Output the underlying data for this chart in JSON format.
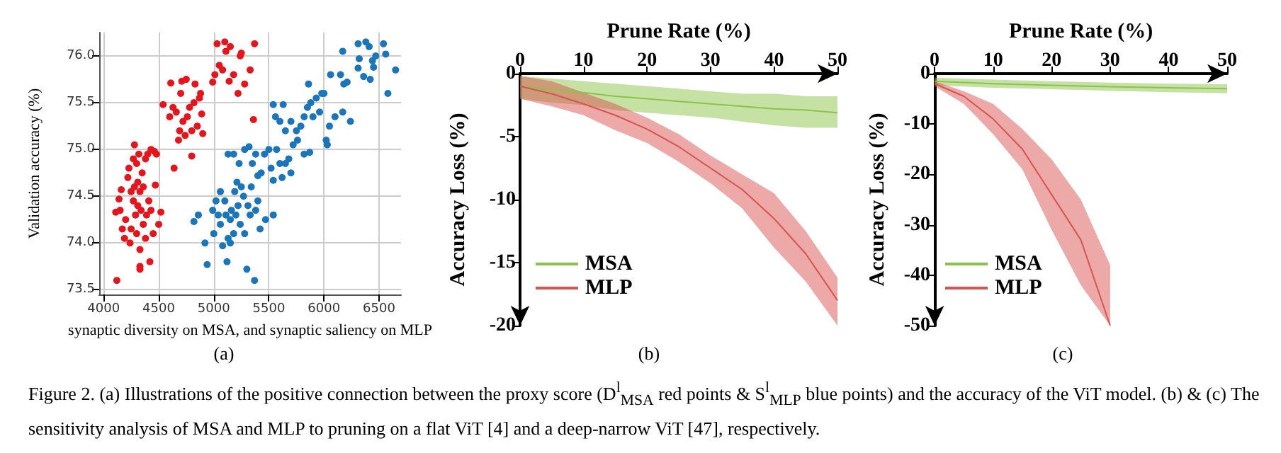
{
  "chart_data": [
    {
      "type": "scatter",
      "xlabel": "synaptic diversity on MSA, and synaptic saliency on MLP",
      "ylabel": "Validation accuracy (%)",
      "xlim": [
        3960,
        6700
      ],
      "xticks": [
        4000,
        4500,
        5000,
        5500,
        6000,
        6500
      ],
      "ylim": [
        73.45,
        76.25
      ],
      "yticks": [
        {
          "value": 73.5,
          "label": "73.5"
        },
        {
          "value": 74,
          "label": "74.0"
        },
        {
          "value": 74.5,
          "label": "74.5"
        },
        {
          "value": 75,
          "label": "75.0"
        },
        {
          "value": 75.5,
          "label": "75.5"
        },
        {
          "value": 76,
          "label": "76.0"
        }
      ],
      "grid": true,
      "marker": "circle",
      "annotations": [
        "(a)"
      ],
      "series": [
        {
          "color": "#e8141c",
          "x": [
            4120,
            4330,
            4330,
            4420,
            4240,
            4330,
            4380,
            4450,
            4500,
            4170,
            4200,
            4150,
            4110,
            4140,
            4160,
            4220,
            4250,
            4270,
            4290,
            4310,
            4340,
            4360,
            4390,
            4410,
            4430,
            4470,
            4520,
            4270,
            4280,
            4300,
            4320,
            4350,
            4380,
            4400,
            4430,
            4460,
            4480,
            4310,
            4330,
            4250,
            4300,
            4190,
            4360,
            4230,
            4280,
            4540,
            4610,
            4640,
            4600,
            4630,
            4660,
            4690,
            4700,
            4720,
            4710,
            4750,
            4760,
            4780,
            4800,
            4800,
            4820,
            4830,
            4850,
            4870,
            4890,
            4900,
            4880,
            4680,
            4740,
            4990,
            5010,
            5030,
            5050,
            5080,
            5100,
            5110,
            5150,
            5140,
            5180,
            5220,
            5240,
            5250,
            5280,
            5330,
            5360,
            5370
          ],
          "values": [
            73.6,
            73.75,
            73.72,
            73.8,
            74.0,
            73.93,
            74.05,
            74.1,
            74.2,
            74.15,
            74.25,
            74.35,
            74.33,
            74.47,
            74.57,
            74.7,
            74.55,
            74.45,
            74.3,
            74.4,
            74.35,
            74.2,
            74.3,
            74.45,
            74.35,
            74.62,
            74.33,
            74.9,
            75.05,
            74.85,
            74.95,
            74.75,
            74.9,
            74.95,
            75.0,
            74.98,
            74.95,
            74.65,
            74.55,
            74.15,
            74.1,
            74.05,
            74.6,
            74.8,
            74.6,
            75.48,
            75.71,
            74.8,
            75.35,
            75.45,
            75.4,
            75.2,
            75.6,
            75.3,
            75.73,
            75.75,
            75.35,
            75.45,
            74.93,
            75.2,
            75.5,
            75.7,
            75.25,
            75.55,
            75.38,
            75.17,
            75.6,
            75.1,
            75.15,
            75.72,
            75.8,
            76.13,
            75.9,
            75.85,
            76.15,
            76.05,
            76.1,
            75.73,
            75.8,
            75.6,
            76.0,
            76.03,
            75.7,
            75.85,
            75.32,
            76.13
          ]
        },
        {
          "color": "#1a75bb",
          "x": [
            4820,
            4860,
            4920,
            4940,
            5000,
            4990,
            5020,
            5040,
            5060,
            5080,
            5100,
            5120,
            5130,
            5150,
            5160,
            5180,
            5190,
            5200,
            5220,
            5240,
            5250,
            5270,
            5280,
            5300,
            5310,
            5330,
            5340,
            5370,
            5380,
            5400,
            5420,
            5470,
            5540,
            5060,
            5150,
            5210,
            5110,
            5130,
            5180,
            5230,
            5280,
            5320,
            5350,
            5380,
            5400,
            5430,
            5460,
            5500,
            5520,
            5540,
            5570,
            5600,
            5620,
            5650,
            5680,
            5700,
            5720,
            5750,
            5760,
            5790,
            5820,
            5540,
            5560,
            5600,
            5630,
            5650,
            5700,
            5820,
            5850,
            5860,
            5880,
            5900,
            5930,
            5960,
            5980,
            6000,
            6020,
            6030,
            6050,
            6060,
            6100,
            6150,
            6170,
            6180,
            6210,
            6240,
            5870,
            6170,
            6310,
            6320,
            6310,
            6360,
            6380,
            6410,
            6420,
            6440,
            6470,
            6450,
            6540,
            6560,
            6580,
            6650
          ],
          "values": [
            74.23,
            74.3,
            74.0,
            73.77,
            74.1,
            74.35,
            74.45,
            74.3,
            74.2,
            73.97,
            74.45,
            73.8,
            74.05,
            74.25,
            74.35,
            74.1,
            74.55,
            74.3,
            74.4,
            74.2,
            74.6,
            74.5,
            74.1,
            73.72,
            74.4,
            74.3,
            74.6,
            73.6,
            74.35,
            74.45,
            74.15,
            74.25,
            74.3,
            74.55,
            74.0,
            74.65,
            74.3,
            74.95,
            74.95,
            74.85,
            75.0,
            75.03,
            74.85,
            74.95,
            74.72,
            74.75,
            74.95,
            75.0,
            74.8,
            74.67,
            75.0,
            74.85,
            74.7,
            74.85,
            74.9,
            74.75,
            75.05,
            75.2,
            75.1,
            75.25,
            74.95,
            75.48,
            75.35,
            75.3,
            75.48,
            75.2,
            75.3,
            75.35,
            75.45,
            75.7,
            75.5,
            75.35,
            75.55,
            75.4,
            75.6,
            75.6,
            75.1,
            75.05,
            75.25,
            75.8,
            75.35,
            75.8,
            75.4,
            75.7,
            75.72,
            75.3,
            74.97,
            76.05,
            76.13,
            75.97,
            75.87,
            75.78,
            76.15,
            76.1,
            75.75,
            75.95,
            76.0,
            75.88,
            76.13,
            76.02,
            75.6,
            75.85
          ]
        }
      ]
    },
    {
      "type": "line",
      "xlabel": "Prune Rate (%)",
      "ylabel": "Accuracy Loss (%)",
      "xlim": [
        0,
        50
      ],
      "xticks": [
        0,
        10,
        20,
        30,
        40,
        50
      ],
      "ylim": [
        -20,
        0
      ],
      "yticks": [
        -20,
        -15,
        -10,
        -5,
        0
      ],
      "grid": false,
      "legend": "bottom left",
      "marker": "none",
      "annotations": [
        "(b)"
      ],
      "series": [
        {
          "name": "MSA",
          "color": "#8bc34a",
          "x": [
            0,
            5,
            10,
            15,
            20,
            25,
            30,
            35,
            40,
            45,
            50
          ],
          "values": [
            -1.0,
            -1.3,
            -1.5,
            -1.8,
            -2.0,
            -2.2,
            -2.4,
            -2.6,
            -2.8,
            -2.9,
            -3.1
          ],
          "lower": [
            -2.0,
            -2.3,
            -2.5,
            -2.9,
            -3.1,
            -3.3,
            -3.5,
            -3.8,
            -4.1,
            -4.3,
            -4.3
          ],
          "upper": [
            -0.2,
            -0.4,
            -0.6,
            -0.8,
            -1.0,
            -1.2,
            -1.4,
            -1.6,
            -1.6,
            -1.8,
            -1.8
          ]
        },
        {
          "name": "MLP",
          "color": "#d9534f",
          "x": [
            0,
            5,
            10,
            15,
            20,
            25,
            30,
            35,
            40,
            45,
            50
          ],
          "values": [
            -1.0,
            -1.6,
            -2.4,
            -3.3,
            -4.4,
            -5.8,
            -7.5,
            -9.2,
            -11.5,
            -14.3,
            -18.0
          ],
          "lower": [
            -2.0,
            -2.6,
            -3.3,
            -4.5,
            -5.5,
            -7.0,
            -8.7,
            -10.7,
            -13.8,
            -16.5,
            -20.0
          ],
          "upper": [
            -0.2,
            -0.6,
            -1.5,
            -2.4,
            -3.5,
            -4.8,
            -6.5,
            -8.0,
            -9.5,
            -12.5,
            -16.2
          ]
        }
      ]
    },
    {
      "type": "line",
      "xlabel": "Prune Rate (%)",
      "ylabel": "Accuracy Loss (%)",
      "xlim": [
        0,
        50
      ],
      "xticks": [
        0,
        10,
        20,
        30,
        40,
        50
      ],
      "ylim": [
        -50,
        0
      ],
      "yticks": [
        -50,
        -40,
        -30,
        -20,
        -10,
        0
      ],
      "grid": false,
      "legend": "bottom left",
      "marker": "none",
      "annotations": [
        "(c)"
      ],
      "series": [
        {
          "name": "MSA",
          "color": "#8bc34a",
          "x": [
            0,
            10,
            20,
            30,
            40,
            50
          ],
          "values": [
            -1.5,
            -2.0,
            -2.3,
            -2.6,
            -2.8,
            -3.0
          ],
          "lower": [
            -2.3,
            -2.8,
            -3.1,
            -3.4,
            -3.7,
            -3.9
          ],
          "upper": [
            -0.8,
            -1.2,
            -1.5,
            -1.8,
            -2.0,
            -2.1
          ]
        },
        {
          "name": "MLP",
          "color": "#d9534f",
          "x": [
            0,
            5,
            10,
            15,
            20,
            25,
            30
          ],
          "values": [
            -2.0,
            -4.5,
            -9.0,
            -15.0,
            -24.0,
            -33.0,
            -50.0
          ],
          "lower": [
            -2.5,
            -6.0,
            -12.0,
            -19.0,
            -31.0,
            -42.0,
            -50.0
          ],
          "upper": [
            -1.5,
            -3.5,
            -6.0,
            -11.0,
            -17.0,
            -25.0,
            -38.0
          ]
        }
      ]
    },
    {
      "type": "other",
      "annotations": [
        "Figure 2. (a) Illustrations of the positive connection between the proxy score (D$^{l}$$_{MSA}$ red points & S$^{l}$$_{MLP}$ blue points) and the accuracy of the ViT model. (b) & (c) The sensitivity analysis of MSA and MLP to pruning on a flat ViT [4] and a deep-narrow ViT [47], respectively."
      ]
    }
  ]
}
